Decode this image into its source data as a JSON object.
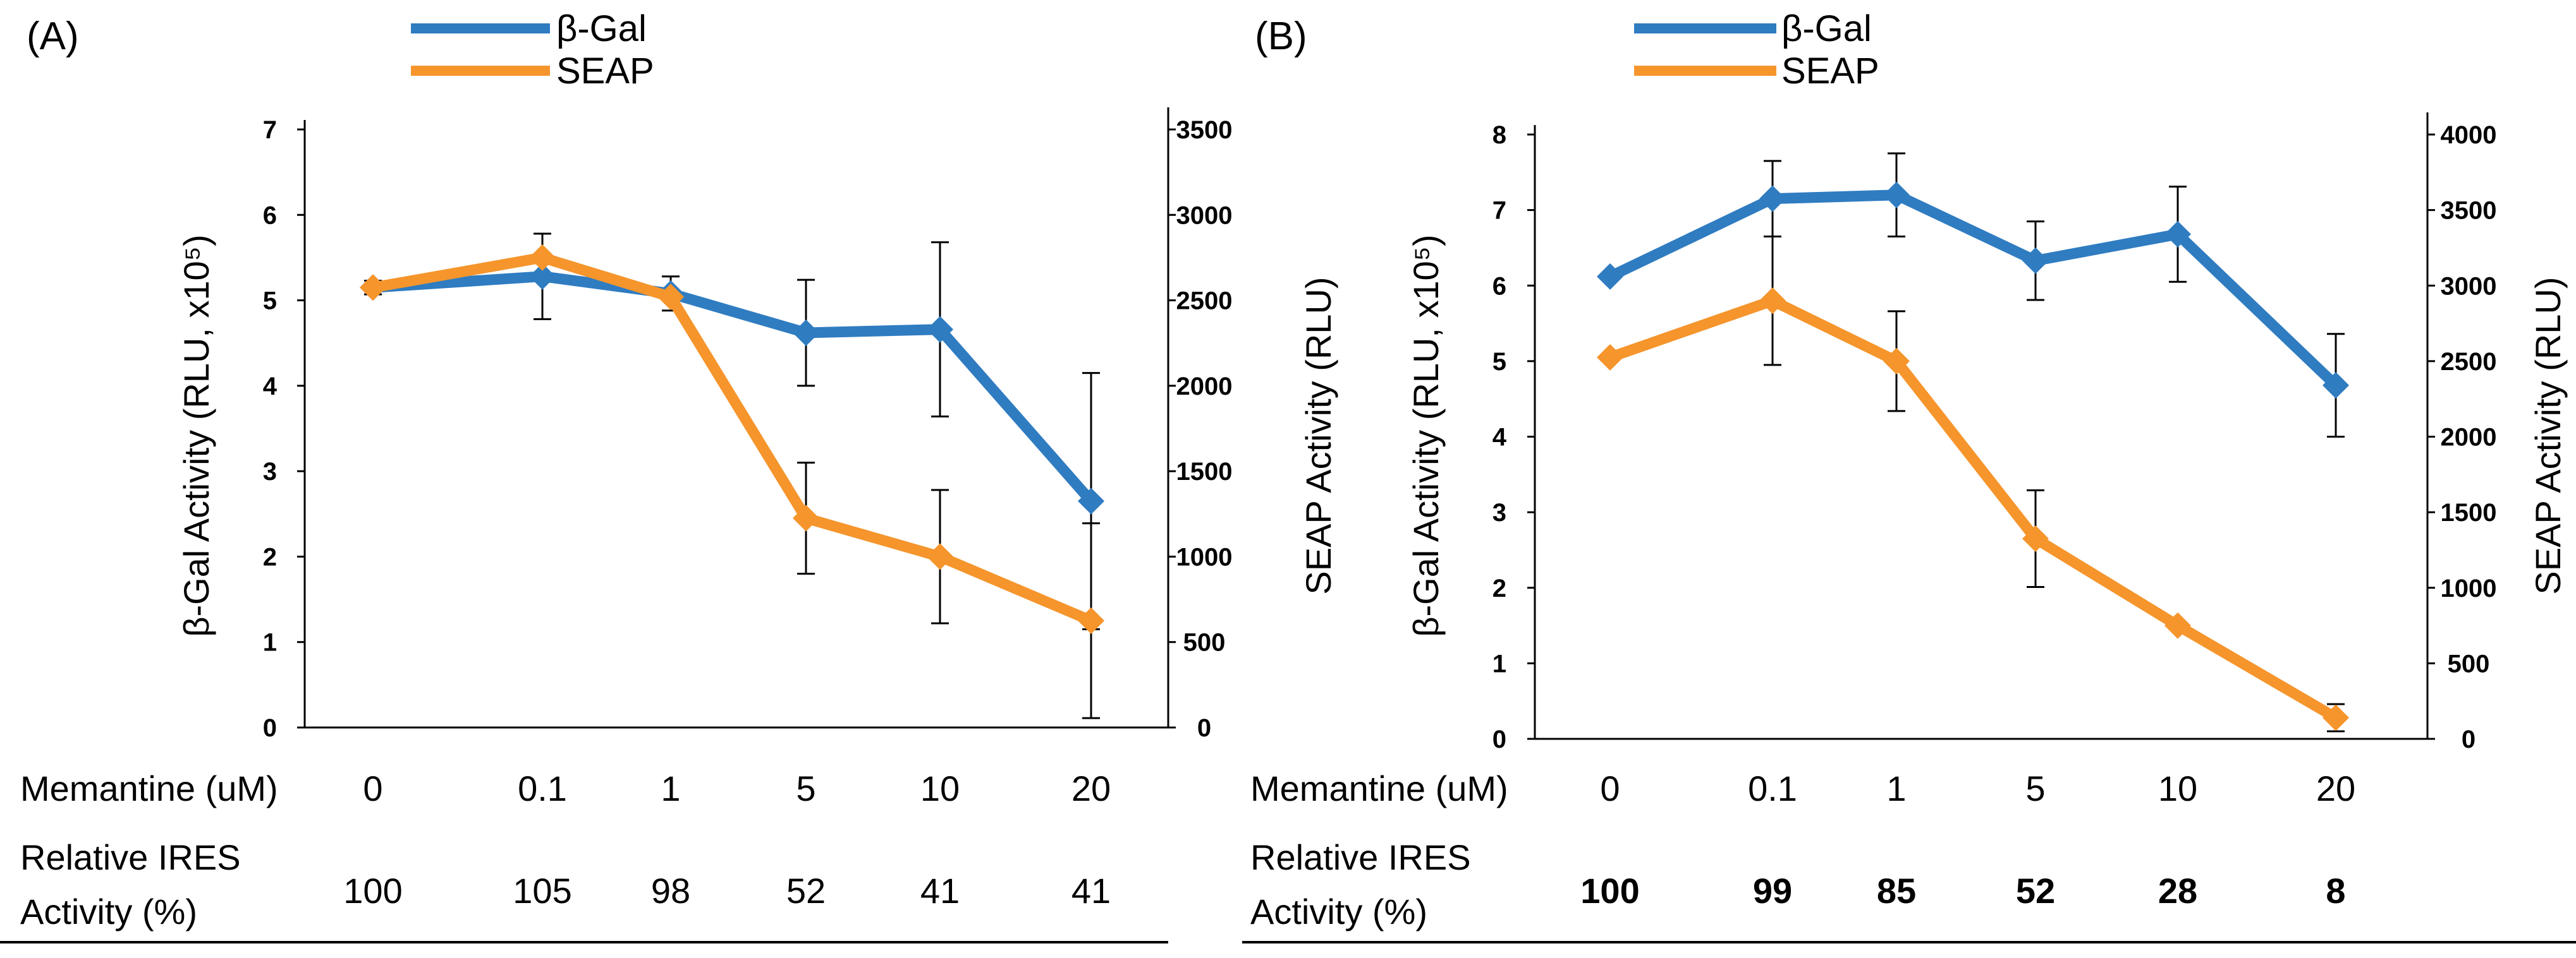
{
  "chart_data": [
    {
      "panel_label": "(A)",
      "type": "line",
      "dual_axis": true,
      "categories": [
        "0",
        "0.1",
        "1",
        "5",
        "10",
        "20"
      ],
      "legend": [
        "β-Gal",
        "SEAP"
      ],
      "legend_position": "top-center",
      "series": [
        {
          "name": "β-Gal",
          "axis": "left",
          "color": "#2f7cc1",
          "values": [
            5.15,
            5.28,
            5.08,
            4.62,
            4.66,
            2.65
          ],
          "error": [
            0.08,
            0.5,
            0.2,
            0.62,
            1.02,
            1.5
          ]
        },
        {
          "name": "SEAP",
          "axis": "right",
          "color": "#f5952c",
          "values": [
            2575,
            2750,
            2520,
            1225,
            1000,
            625
          ],
          "error": [
            0,
            0,
            0,
            325,
            390,
            570
          ]
        }
      ],
      "ylabel_left": "β-Gal  Activity (RLU, x10⁵)",
      "ylim_left": [
        0,
        7
      ],
      "yticks_left": [
        "0",
        "1",
        "2",
        "3",
        "4",
        "5",
        "6",
        "7"
      ],
      "ylabel_right": "SEAP  Activity (RLU)",
      "ylim_right": [
        0,
        3500
      ],
      "yticks_right": [
        "0",
        "500",
        "1000",
        "1500",
        "2000",
        "2500",
        "3000",
        "3500"
      ],
      "table": {
        "row1_label": "Memantine (uM)",
        "row2_label_line1": "Relative IRES",
        "row2_label_line2": "Activity (%)",
        "values": [
          "100",
          "105",
          "98",
          "52",
          "41",
          "41"
        ],
        "values_bold": false
      }
    },
    {
      "panel_label": "(B)",
      "type": "line",
      "dual_axis": true,
      "categories": [
        "0",
        "0.1",
        "1",
        "5",
        "10",
        "20"
      ],
      "legend": [
        "β-Gal",
        "SEAP"
      ],
      "legend_position": "top-center",
      "series": [
        {
          "name": "β-Gal",
          "axis": "left",
          "color": "#2f7cc1",
          "values": [
            6.12,
            7.15,
            7.2,
            6.33,
            6.68,
            4.68
          ],
          "error": [
            0,
            0.5,
            0.55,
            0.52,
            0.63,
            0.68
          ]
        },
        {
          "name": "SEAP",
          "axis": "right",
          "color": "#f5952c",
          "values": [
            2525,
            2900,
            2500,
            1325,
            750,
            140
          ],
          "error": [
            0,
            425,
            330,
            320,
            0,
            90
          ]
        }
      ],
      "ylabel_left": "β-Gal  Activity (RLU, x10⁵)",
      "ylim_left": [
        0,
        8
      ],
      "yticks_left": [
        "0",
        "1",
        "2",
        "3",
        "4",
        "5",
        "6",
        "7",
        "8"
      ],
      "ylabel_right": "SEAP  Activity (RLU)",
      "ylim_right": [
        0,
        4000
      ],
      "yticks_right": [
        "0",
        "500",
        "1000",
        "1500",
        "2000",
        "2500",
        "3000",
        "3500",
        "4000"
      ],
      "table": {
        "row1_label": "Memantine (uM)",
        "row2_label_line1": "Relative IRES",
        "row2_label_line2": "Activity (%)",
        "values": [
          "100",
          "99",
          "85",
          "52",
          "28",
          "8"
        ],
        "values_bold": true
      }
    }
  ]
}
